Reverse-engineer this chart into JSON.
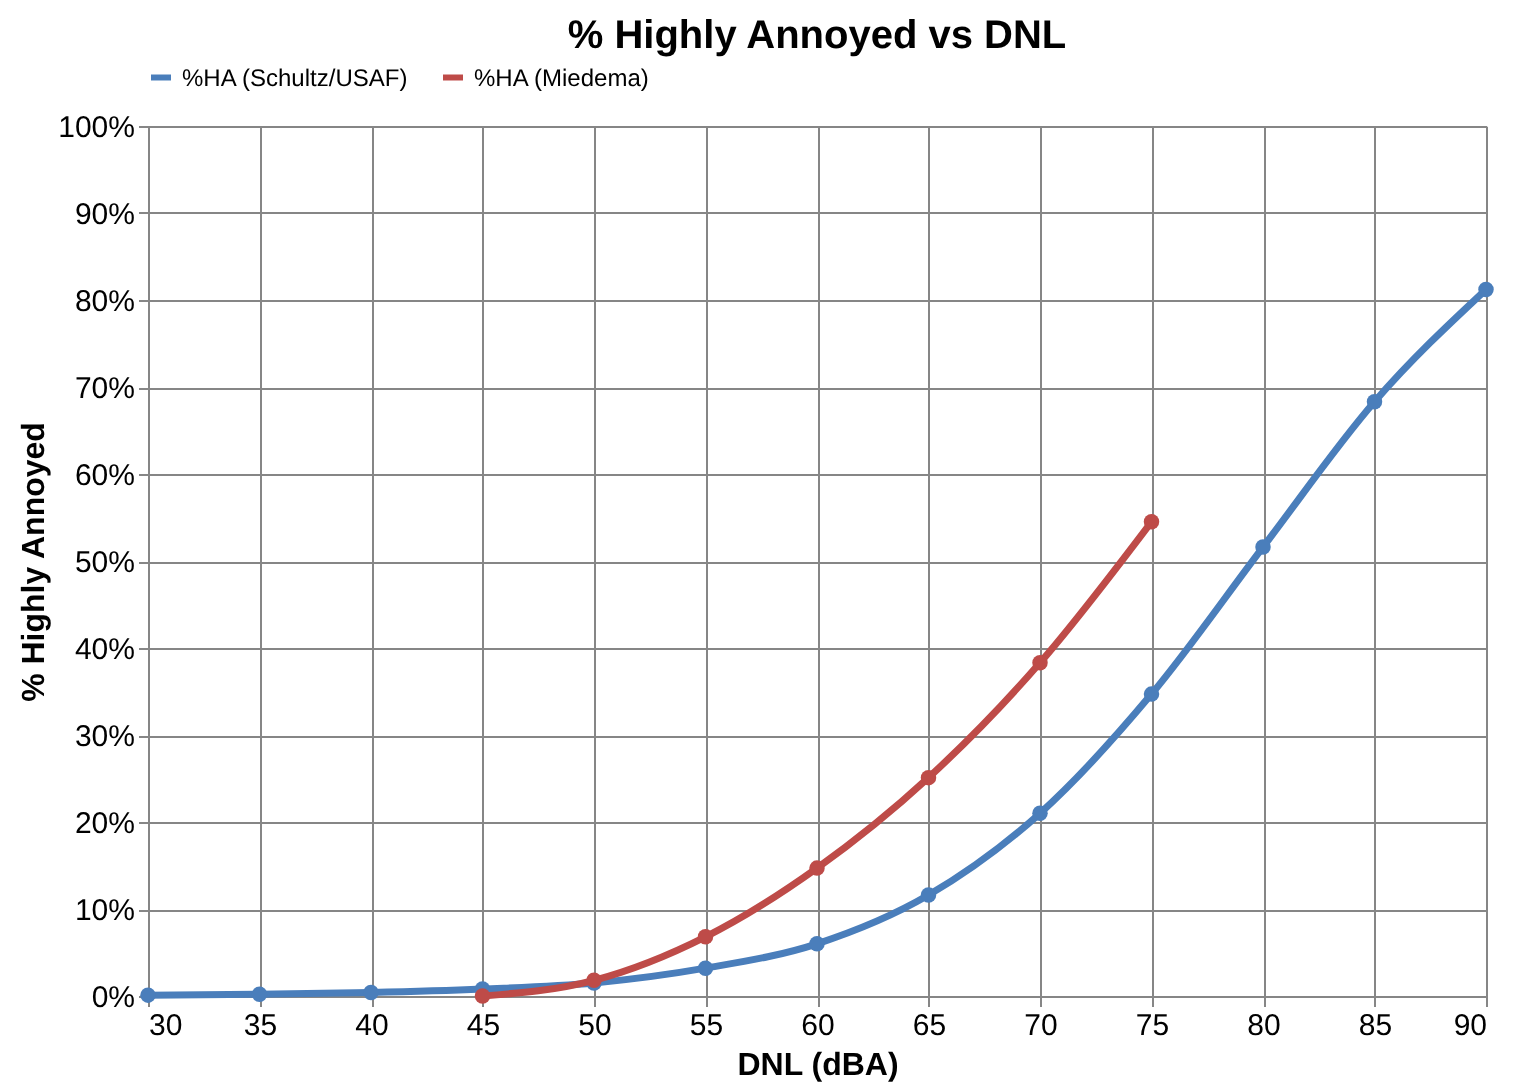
{
  "chart_data": {
    "type": "line",
    "title": "% Highly Annoyed vs DNL",
    "xlabel": "DNL (dBA)",
    "ylabel": "% Highly Annoyed",
    "series": [
      {
        "name": "%HA (Schultz/USAF)",
        "color": "#4a7ebb",
        "x": [
          30,
          35,
          40,
          45,
          50,
          55,
          60,
          65,
          70,
          75,
          80,
          85,
          90
        ],
        "values": [
          0.1,
          0.2,
          0.4,
          0.8,
          1.5,
          3.2,
          6.0,
          11.6,
          21.0,
          34.7,
          51.6,
          68.3,
          81.2
        ]
      },
      {
        "name": "%HA (Miedema)",
        "color": "#be4b48",
        "x": [
          45,
          50,
          55,
          60,
          65,
          70,
          75
        ],
        "values": [
          0.0,
          1.8,
          6.8,
          14.7,
          25.1,
          38.3,
          54.5
        ]
      }
    ],
    "xlim": [
      30,
      90
    ],
    "xticks": [
      30,
      35,
      40,
      45,
      50,
      55,
      60,
      65,
      70,
      75,
      80,
      85,
      90
    ],
    "ylim": [
      0,
      100
    ],
    "yticks": [
      {
        "value": 0,
        "label": "0%"
      },
      {
        "value": 10,
        "label": "10%"
      },
      {
        "value": 20,
        "label": "20%"
      },
      {
        "value": 30,
        "label": "30%"
      },
      {
        "value": 40,
        "label": "40%"
      },
      {
        "value": 50,
        "label": "50%"
      },
      {
        "value": 60,
        "label": "60%"
      },
      {
        "value": 70,
        "label": "70%"
      },
      {
        "value": 80,
        "label": "80%"
      },
      {
        "value": 90,
        "label": "90%"
      },
      {
        "value": 100,
        "label": "100%"
      }
    ],
    "grid": true,
    "legend": "top",
    "marker": "circle",
    "line_style": "solid"
  }
}
